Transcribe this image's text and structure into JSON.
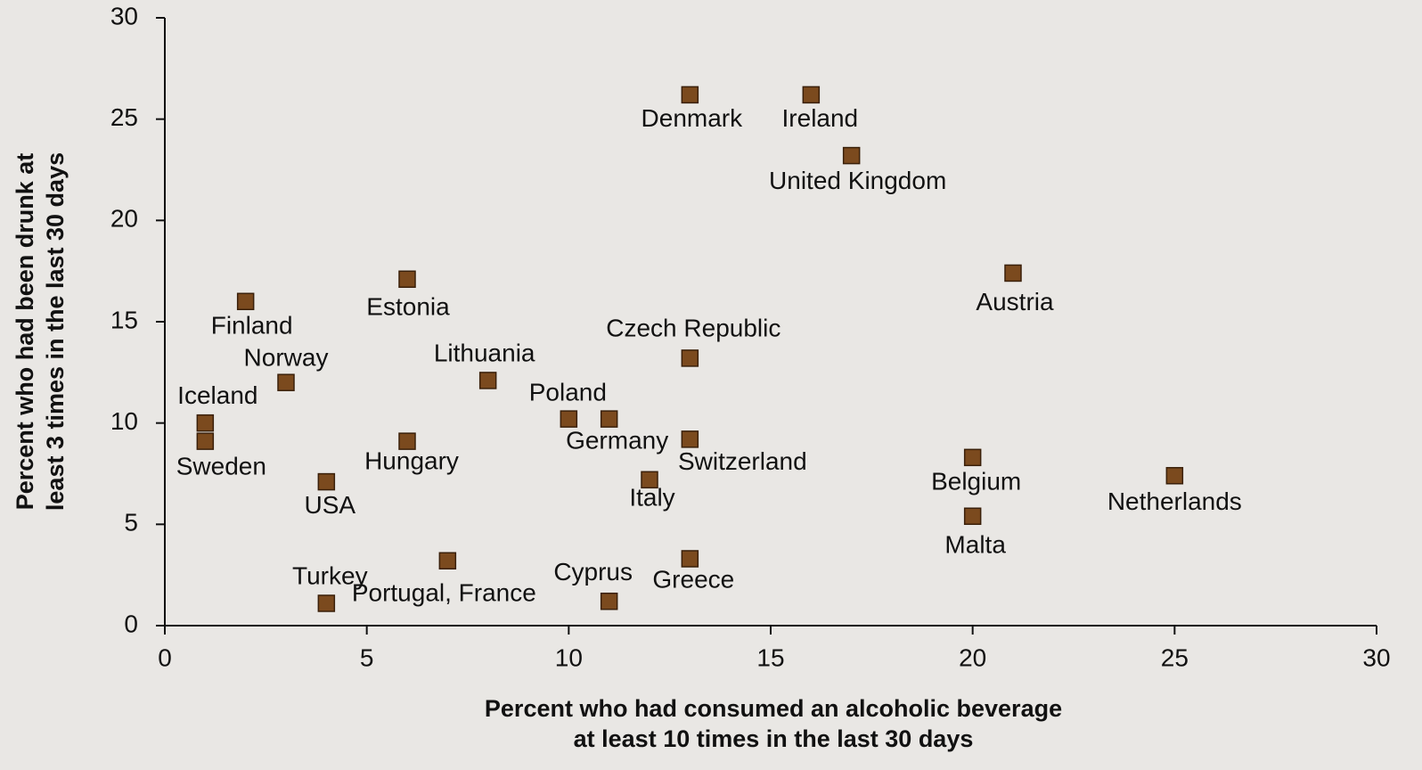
{
  "chart_data": {
    "type": "scatter",
    "xlabel": [
      "Percent who had consumed an alcoholic beverage",
      "at least 10 times in the last 30 days"
    ],
    "ylabel": [
      "Percent who had been drunk at",
      "least 3 times in the last 30 days"
    ],
    "xlim": [
      0,
      30
    ],
    "xticks": [
      0,
      5,
      10,
      15,
      20,
      25,
      30
    ],
    "ylim": [
      0,
      30
    ],
    "yticks": [
      0,
      5,
      10,
      15,
      20,
      25,
      30
    ],
    "color": "#7b4a1e",
    "labels": [
      "Denmark",
      "Ireland",
      "United Kingdom",
      "Austria",
      "Finland",
      "Estonia",
      "Czech Republic",
      "Lithuania",
      "Norway",
      "Iceland",
      "Sweden",
      "Poland",
      "Germany",
      "Switzerland",
      "Hungary",
      "Belgium",
      "Netherlands",
      "Italy",
      "USA",
      "Malta",
      "Portugal, France",
      "Greece",
      "Turkey",
      "Cyprus"
    ],
    "x": [
      13,
      16,
      17,
      21,
      2,
      6,
      13,
      8,
      3,
      1,
      1,
      10,
      11,
      13,
      6,
      20,
      25,
      12,
      4,
      20,
      7,
      13,
      4,
      11
    ],
    "y": [
      26.2,
      26.2,
      23.2,
      17.4,
      16.0,
      17.1,
      13.2,
      12.1,
      12.0,
      10.0,
      9.1,
      10.2,
      10.2,
      9.2,
      9.1,
      8.3,
      7.4,
      7.2,
      7.1,
      5.4,
      3.2,
      3.3,
      1.1,
      1.2
    ]
  }
}
